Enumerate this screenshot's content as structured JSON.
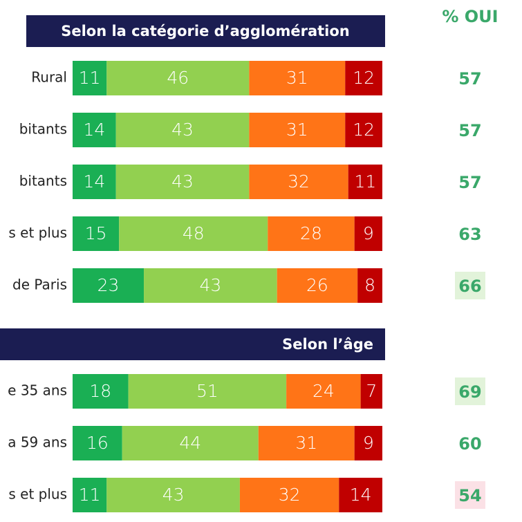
{
  "chart_data": {
    "type": "bar",
    "orientation": "horizontal",
    "stacked": true,
    "xlim": [
      0,
      100
    ],
    "oui_title": "% OUI",
    "groups": [
      {
        "title": "Selon la catégorie d’agglomération",
        "categories": [
          "Rural",
          "bitants",
          "bitants",
          "s et plus",
          "de Paris"
        ],
        "series": [
          {
            "color": "#1aaf54",
            "values": [
              11,
              14,
              14,
              15,
              23
            ]
          },
          {
            "color": "#92d050",
            "values": [
              46,
              43,
              43,
              48,
              43
            ]
          },
          {
            "color": "#ff7417",
            "values": [
              31,
              31,
              32,
              28,
              26
            ]
          },
          {
            "color": "#c00000",
            "values": [
              12,
              12,
              11,
              9,
              8
            ]
          }
        ],
        "oui": [
          57,
          57,
          57,
          63,
          66
        ],
        "oui_background": [
          null,
          null,
          null,
          null,
          "#e2f3da"
        ]
      },
      {
        "title": "Selon l’âge",
        "categories": [
          "e 35 ans",
          "a 59 ans",
          "s et plus"
        ],
        "series": [
          {
            "color": "#1aaf54",
            "values": [
              18,
              16,
              11
            ]
          },
          {
            "color": "#92d050",
            "values": [
              51,
              44,
              43
            ]
          },
          {
            "color": "#ff7417",
            "values": [
              24,
              31,
              32
            ]
          },
          {
            "color": "#c00000",
            "values": [
              7,
              9,
              14
            ]
          }
        ],
        "oui": [
          69,
          60,
          54
        ],
        "oui_background": [
          "#e2f3da",
          null,
          "#fbe1e6"
        ]
      }
    ]
  }
}
